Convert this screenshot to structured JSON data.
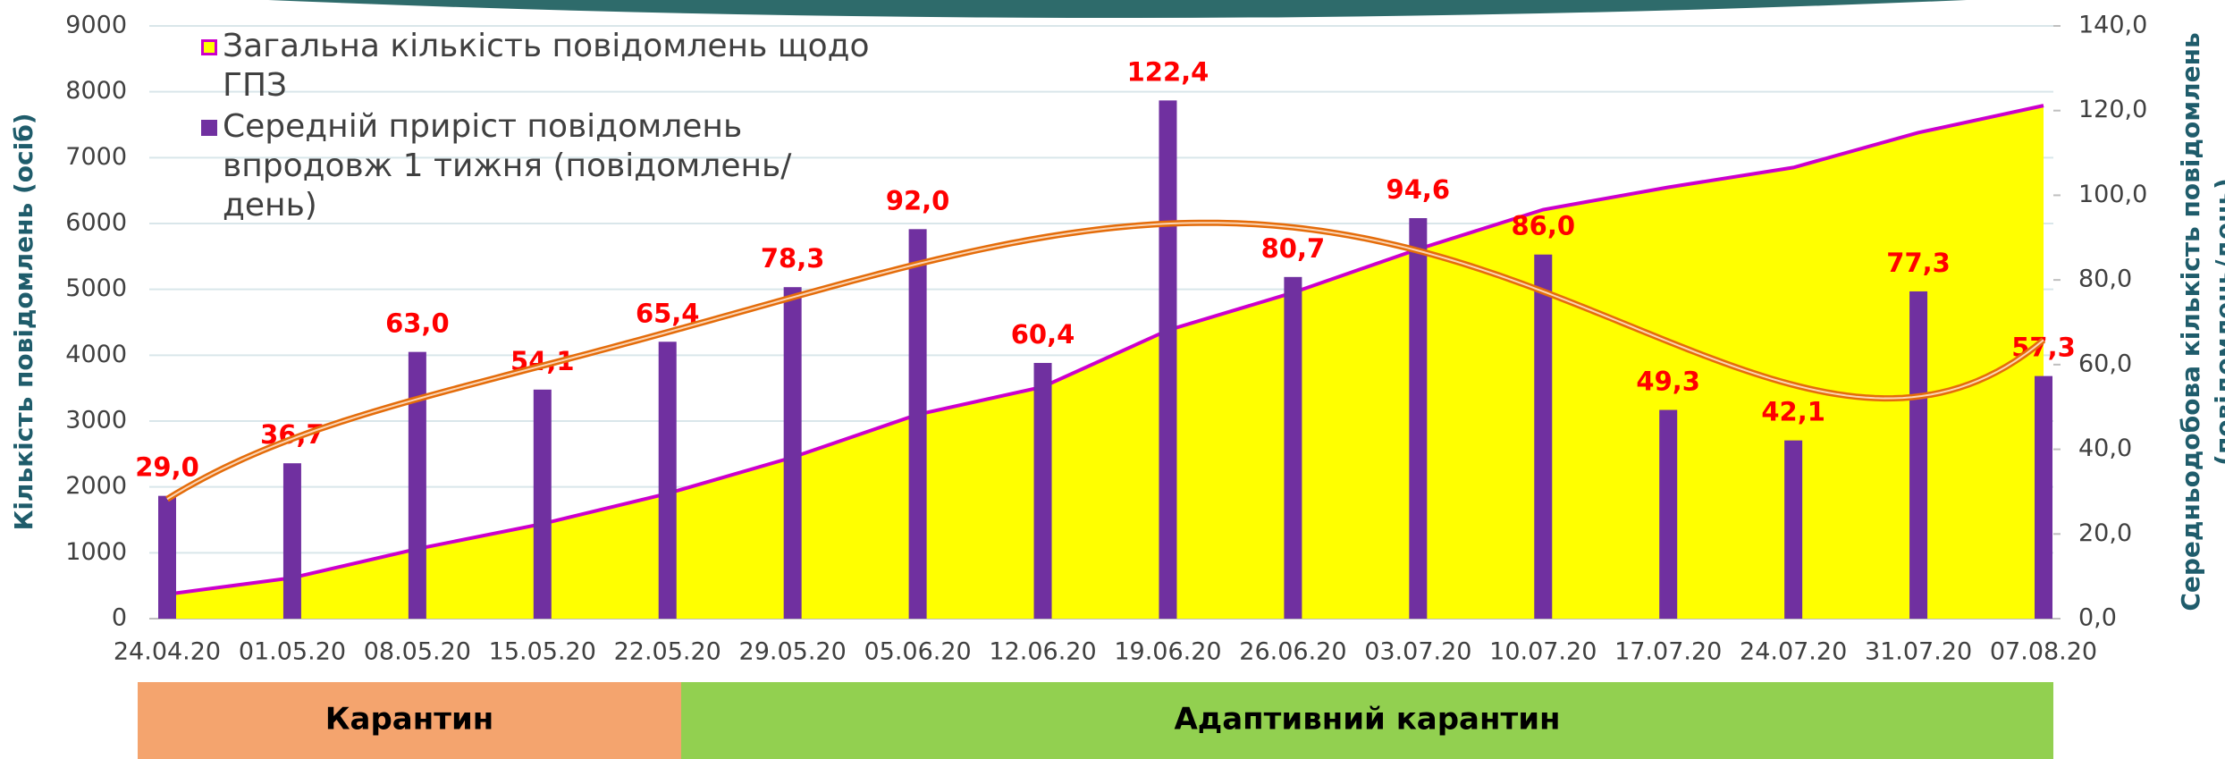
{
  "chart_data": {
    "type": "combo",
    "categories": [
      "24.04.20",
      "01.05.20",
      "08.05.20",
      "15.05.20",
      "22.05.20",
      "29.05.20",
      "05.06.20",
      "12.06.20",
      "19.06.20",
      "26.06.20",
      "03.07.20",
      "10.07.20",
      "17.07.20",
      "24.07.20",
      "31.07.20",
      "07.08.20"
    ],
    "series": [
      {
        "name": "Загальна кількість повідомлень щодо ГПЗ",
        "type": "area",
        "color": "#ffff00",
        "line_color": "#cc00cc",
        "values": [
          370,
          620,
          1060,
          1440,
          1900,
          2450,
          3100,
          3520,
          4380,
          4950,
          5610,
          6210,
          6550,
          6850,
          7380,
          7790
        ]
      },
      {
        "name": "Середній приріст повідомлень впродовж 1 тижня (повідомлень/день)",
        "type": "bar",
        "axis": "y2",
        "color": "#7030a0",
        "values": [
          29.0,
          36.7,
          63.0,
          54.1,
          65.4,
          78.3,
          92.0,
          60.4,
          122.4,
          80.7,
          94.6,
          86.0,
          49.3,
          42.1,
          77.3,
          57.3
        ],
        "value_labels": [
          "29,0",
          "36,7",
          "63,0",
          "54,1",
          "65,4",
          "78,3",
          "92,0",
          "60,4",
          "122,4",
          "80,7",
          "94,6",
          "86,0",
          "49,3",
          "42,1",
          "77,3",
          "57,3"
        ]
      }
    ],
    "ylabel": "Кількість повідомлень (осіб)",
    "y2label": "Середньодобова кількість повідомлень (повідомлень/день)",
    "ylim": [
      0,
      9000
    ],
    "yticks": [
      0,
      1000,
      2000,
      3000,
      4000,
      5000,
      6000,
      7000,
      8000,
      9000
    ],
    "y2lim": [
      0,
      140
    ],
    "y2ticks": [
      {
        "value": 0,
        "label": "0,0"
      },
      {
        "value": 20,
        "label": "20,0"
      },
      {
        "value": 40,
        "label": "40,0"
      },
      {
        "value": 60,
        "label": "60,0"
      },
      {
        "value": 80,
        "label": "80,0"
      },
      {
        "value": 100,
        "label": "100,0"
      },
      {
        "value": 120,
        "label": "120,0"
      },
      {
        "value": 140,
        "label": "140,0"
      }
    ],
    "grid": true,
    "trendline": true,
    "legend": "upper left",
    "annotations": [
      "Карантин",
      "Адаптивний карантин"
    ]
  }
}
